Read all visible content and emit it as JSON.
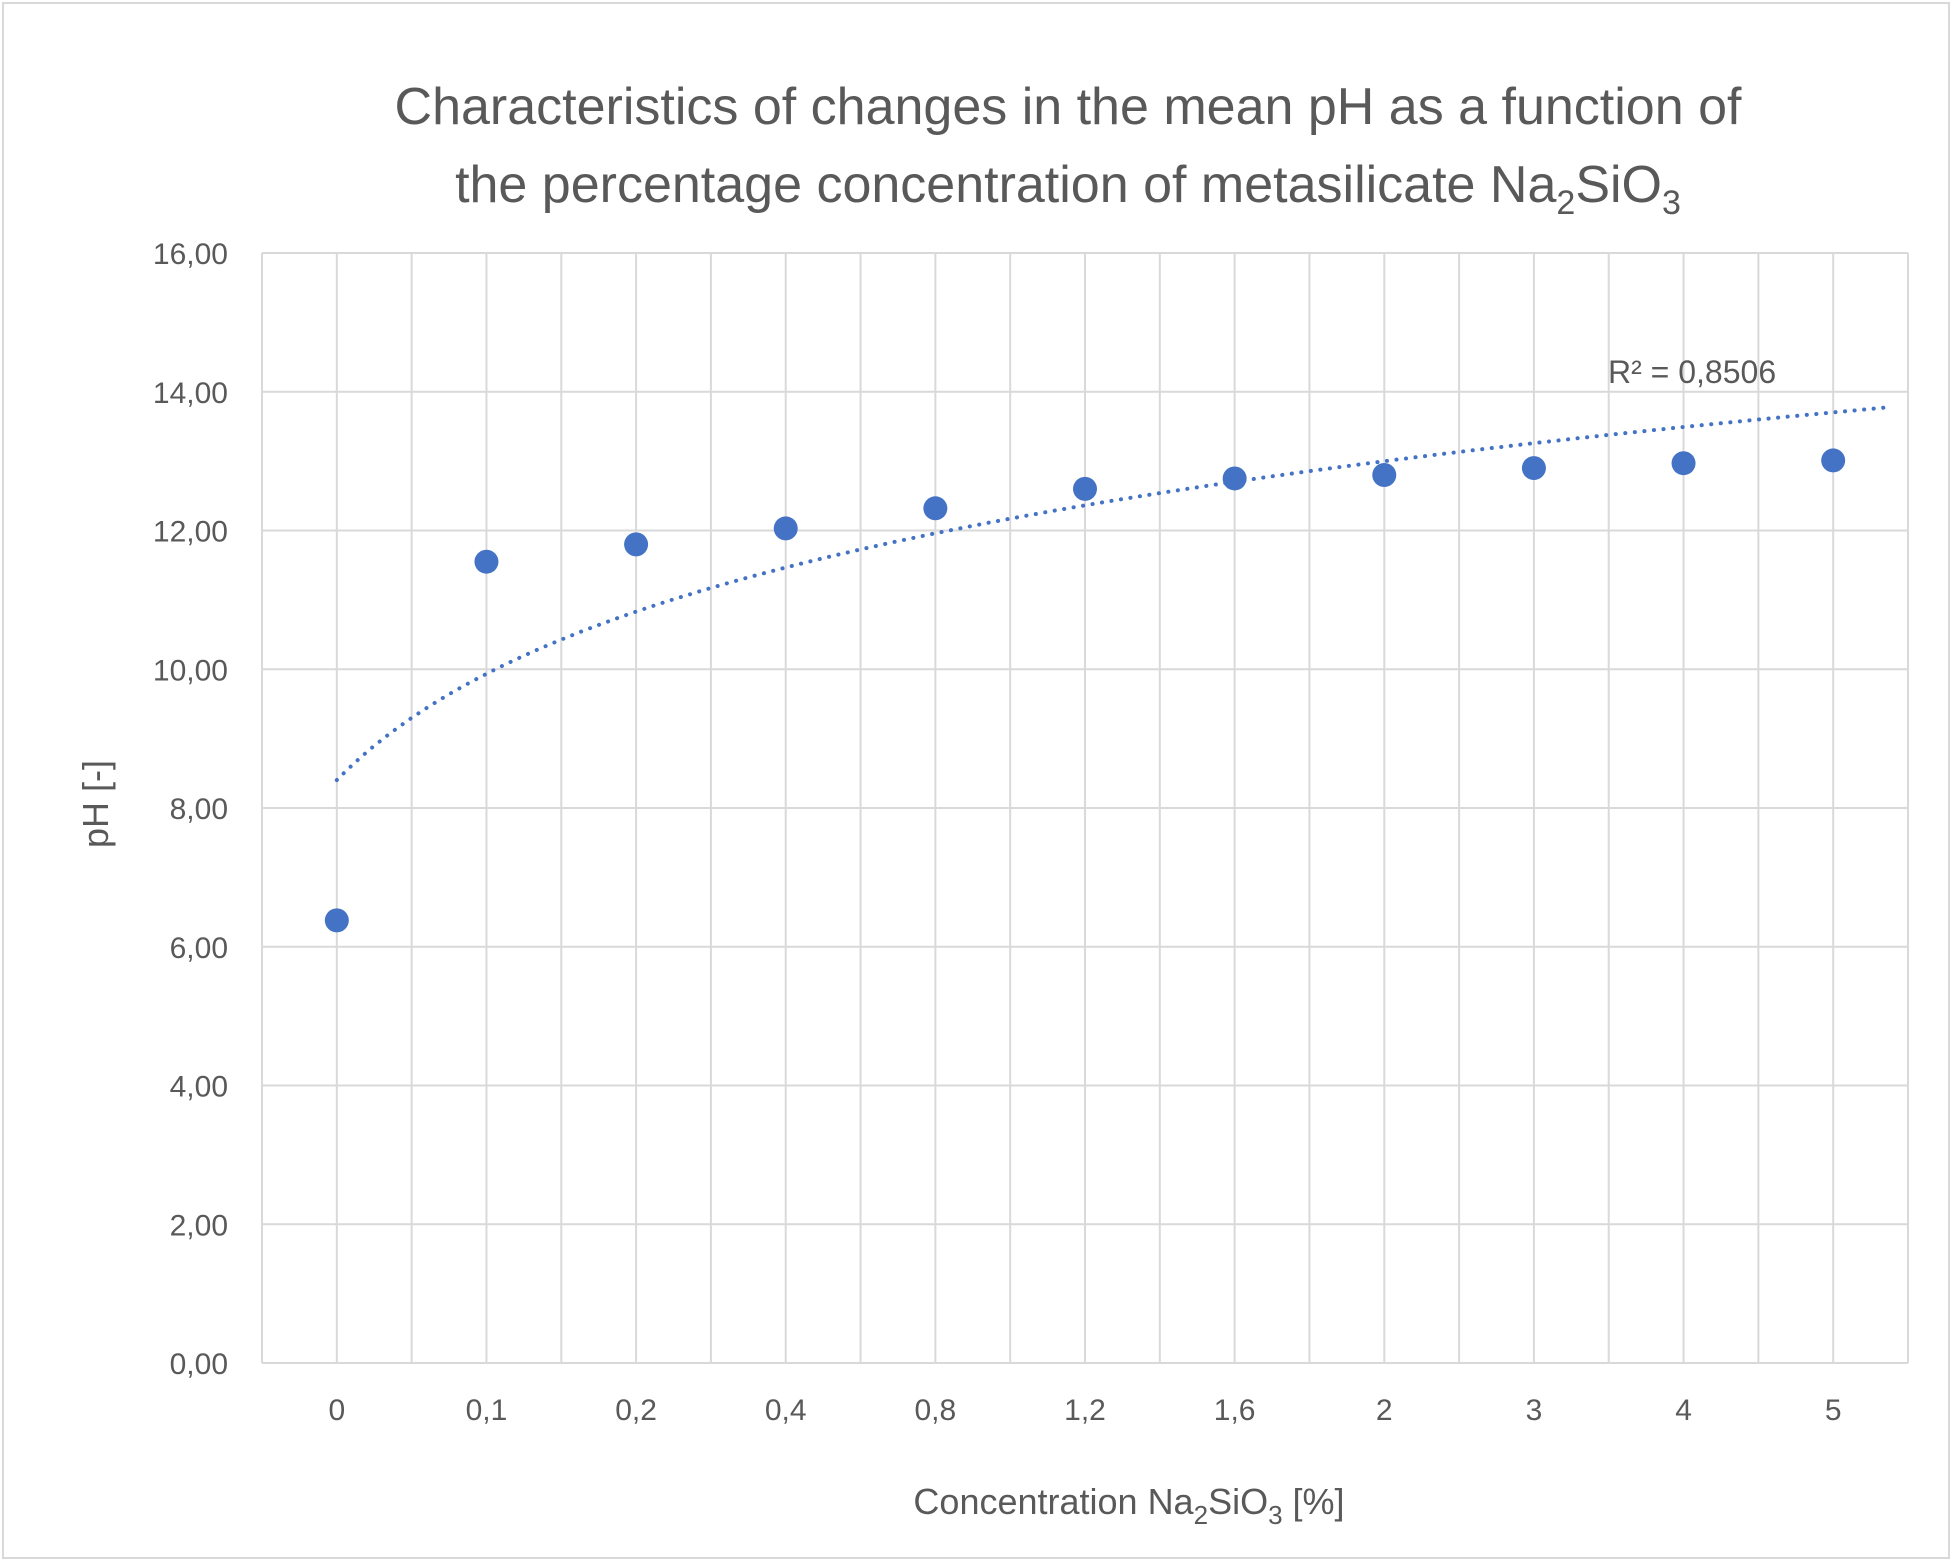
{
  "chart_data": {
    "type": "scatter",
    "title": {
      "line1": "Characteristics of changes in the mean pH as a function of",
      "line2_prefix": "the percentage concentration of metasilicate Na",
      "line2_sub1": "2",
      "line2_mid": "SiO",
      "line2_sub2": "3"
    },
    "xlabel": {
      "prefix": "Concentration Na",
      "sub1": "2",
      "mid": "SiO",
      "sub2": "3",
      "suffix": " [%]"
    },
    "ylabel": "pH [-]",
    "categories": [
      "0",
      "0,1",
      "0,2",
      "0,4",
      "0,8",
      "1,2",
      "1,6",
      "2",
      "3",
      "4",
      "5"
    ],
    "values": [
      6.38,
      11.55,
      11.8,
      12.03,
      12.32,
      12.6,
      12.75,
      12.8,
      12.9,
      12.97,
      13.01
    ],
    "y_ticks": [
      "0,00",
      "2,00",
      "4,00",
      "6,00",
      "8,00",
      "10,00",
      "12,00",
      "14,00",
      "16,00"
    ],
    "ylim": [
      0,
      16
    ],
    "grid": true,
    "point_color": "#4472c4",
    "trendline": {
      "type": "logarithmic",
      "style": "dotted",
      "color": "#4472c4",
      "r_squared_label": "R² = 0,8506"
    }
  }
}
